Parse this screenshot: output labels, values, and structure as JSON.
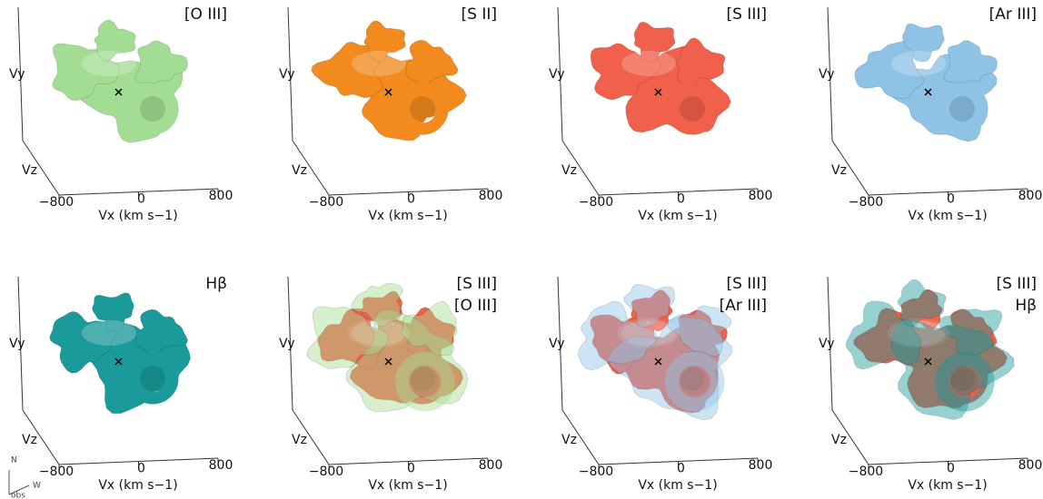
{
  "chart_data": [
    {
      "type": "isosurface",
      "title": [
        "[O III]"
      ],
      "colors": [
        "#a3dd93"
      ],
      "xlabel": "Vx (km s−1)",
      "ylabel": "Vy",
      "zlabel": "Vz",
      "xticks": [
        {
          "value": -800,
          "label": "−800"
        },
        0,
        800
      ]
    },
    {
      "type": "isosurface",
      "title": [
        "[S II]"
      ],
      "colors": [
        "#f28a1e"
      ],
      "xlabel": "Vx (km s−1)",
      "ylabel": "Vy",
      "zlabel": "Vz",
      "xticks": [
        {
          "value": -800,
          "label": "−800"
        },
        0,
        800
      ]
    },
    {
      "type": "isosurface",
      "title": [
        "[S III]"
      ],
      "colors": [
        "#f0604a"
      ],
      "xlabel": "Vx (km s−1)",
      "ylabel": "Vy",
      "zlabel": "Vz",
      "xticks": [
        {
          "value": -800,
          "label": "−800"
        },
        0,
        800
      ]
    },
    {
      "type": "isosurface",
      "title": [
        "[Ar III]"
      ],
      "colors": [
        "#8ec3e6"
      ],
      "xlabel": "Vx (km s−1)",
      "ylabel": "Vy",
      "zlabel": "Vz",
      "xticks": [
        {
          "value": -800,
          "label": "−800"
        },
        0,
        800
      ]
    },
    {
      "type": "isosurface",
      "title": [
        "Hβ"
      ],
      "colors": [
        "#1a9a9a"
      ],
      "xlabel": "Vx (km s−1)",
      "ylabel": "Vy",
      "zlabel": "Vz",
      "xticks": [
        {
          "value": -800,
          "label": "−800"
        },
        0,
        800
      ]
    },
    {
      "type": "isosurface",
      "title": [
        "[S III]",
        "[O III]"
      ],
      "colors": [
        "#f0604a",
        "#a3dd93"
      ],
      "xlabel": "Vx (km s−1)",
      "ylabel": "Vy",
      "zlabel": "Vz",
      "xticks": [
        {
          "value": -800,
          "label": "−800"
        },
        0,
        800
      ]
    },
    {
      "type": "isosurface",
      "title": [
        "[S III]",
        "[Ar III]"
      ],
      "colors": [
        "#f0604a",
        "#8ec3e6"
      ],
      "xlabel": "Vx (km s−1)",
      "ylabel": "Vy",
      "zlabel": "Vz",
      "xticks": [
        {
          "value": -800,
          "label": "−800"
        },
        0,
        800
      ]
    },
    {
      "type": "isosurface",
      "title": [
        "[S III]",
        "Hβ"
      ],
      "colors": [
        "#f0604a",
        "#1a9a9a"
      ],
      "xlabel": "Vx (km s−1)",
      "ylabel": "Vy",
      "zlabel": "Vz",
      "xticks": [
        {
          "value": -800,
          "label": "−800"
        },
        0,
        800
      ]
    }
  ],
  "compass": {
    "north": "N",
    "west": "W",
    "observer": "obs"
  }
}
